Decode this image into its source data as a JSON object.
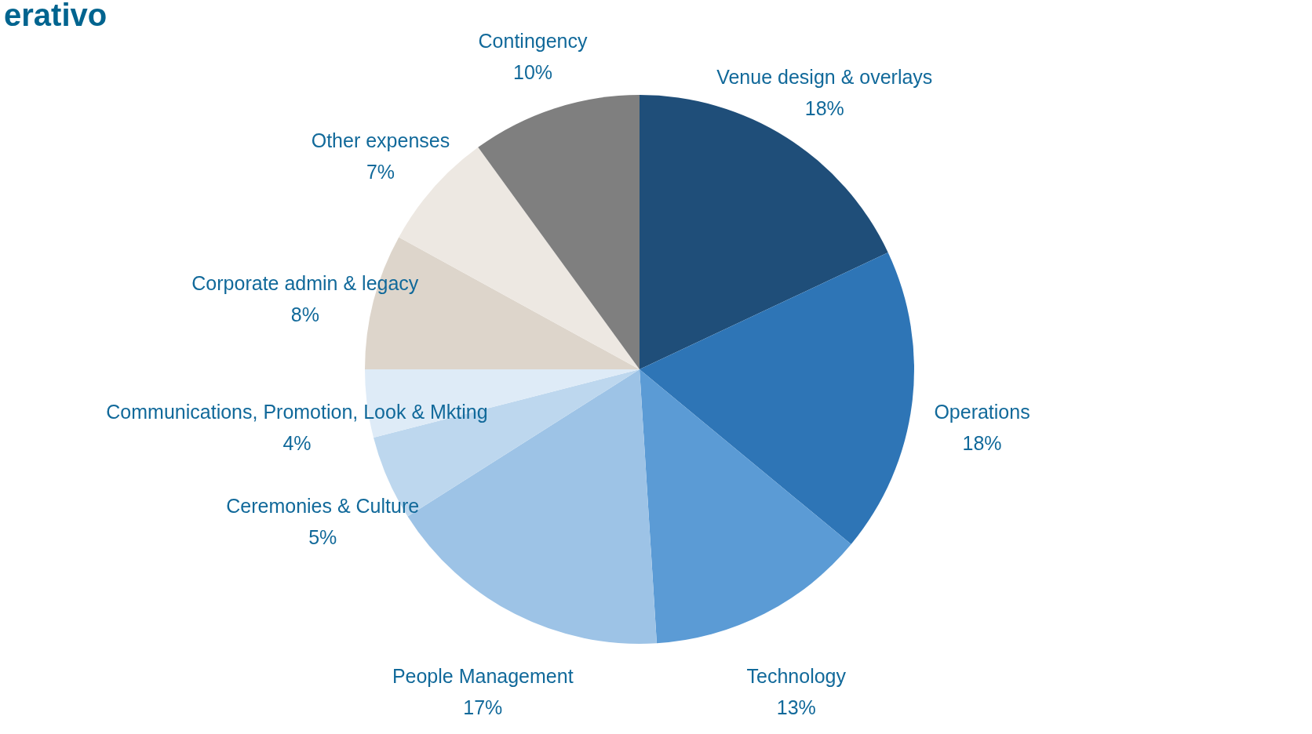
{
  "chart_data": {
    "type": "pie",
    "title": "erativo",
    "categories": [
      "Venue design  & overlays",
      "Operations",
      "Technology",
      "People Management",
      "Ceremonies & Culture",
      "Communications, Promotion, Look & Mkting",
      "Corporate admin & legacy",
      "Other expenses",
      "Contingency"
    ],
    "values": [
      18,
      18,
      13,
      17,
      5,
      4,
      8,
      7,
      10
    ],
    "value_labels": [
      "18%",
      "18%",
      "13%",
      "17%",
      "5%",
      "4%",
      "8%",
      "7%",
      "10%"
    ],
    "colors": [
      "#1f4e79",
      "#2e75b6",
      "#5b9bd5",
      "#9dc3e6",
      "#bdd7ee",
      "#deebf7",
      "#ddd5cb",
      "#ede8e2",
      "#7f7f7f"
    ],
    "legend": false
  }
}
